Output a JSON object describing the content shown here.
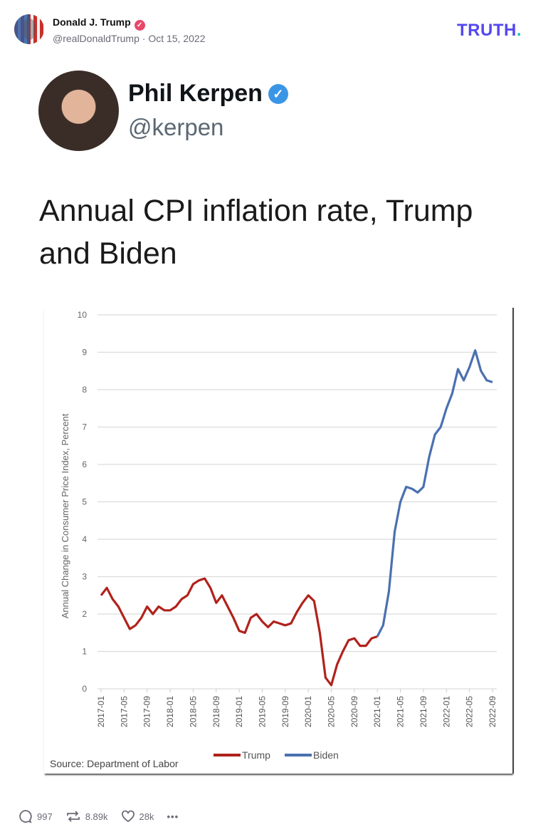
{
  "post": {
    "author_name": "Donald J. Trump",
    "handle": "@realDonaldTrump",
    "separator": "·",
    "date": "Oct 15, 2022",
    "verified_mark": "✓"
  },
  "brand": {
    "logo_text": "TRUTH",
    "logo_dot": ".",
    "color": "#5448ee",
    "dot_color": "#17c4a7"
  },
  "embedded_tweet": {
    "name": "Phil Kerpen",
    "handle": "@kerpen",
    "verified_mark": "✓",
    "text": "Annual CPI inflation rate, Trump and Biden"
  },
  "chart_data": {
    "type": "line",
    "title": "",
    "ylabel": "Annual Change in Consumer Price Index, Percent",
    "xlabel": "",
    "ylim": [
      0,
      10
    ],
    "yticks": [
      "0",
      "1",
      "2",
      "3",
      "4",
      "5",
      "6",
      "7",
      "8",
      "9",
      "10"
    ],
    "xticks": [
      "2017-01",
      "2017-05",
      "2017-09",
      "2018-01",
      "2018-05",
      "2018-09",
      "2019-01",
      "2019-05",
      "2019-09",
      "2020-01",
      "2020-05",
      "2020-09",
      "2021-01",
      "2021-05",
      "2021-09",
      "2022-01",
      "2022-05",
      "2022-09"
    ],
    "grid": true,
    "legend_position": "bottom",
    "source": "Source: Department of Labor",
    "series": [
      {
        "name": "Trump",
        "color": "#b0221c",
        "start": "2017-01",
        "values": [
          2.5,
          2.7,
          2.4,
          2.2,
          1.9,
          1.6,
          1.7,
          1.9,
          2.2,
          2.0,
          2.2,
          2.1,
          2.1,
          2.2,
          2.4,
          2.5,
          2.8,
          2.9,
          2.95,
          2.7,
          2.3,
          2.5,
          2.2,
          1.9,
          1.55,
          1.5,
          1.9,
          2.0,
          1.8,
          1.65,
          1.8,
          1.75,
          1.7,
          1.75,
          2.05,
          2.3,
          2.5,
          2.35,
          1.5,
          0.3,
          0.1,
          0.65,
          1.0,
          1.3,
          1.35,
          1.15,
          1.15,
          1.35,
          1.4
        ]
      },
      {
        "name": "Biden",
        "color": "#4a70b0",
        "start": "2021-01",
        "values": [
          1.4,
          1.7,
          2.6,
          4.2,
          5.0,
          5.4,
          5.35,
          5.25,
          5.4,
          6.2,
          6.8,
          7.0,
          7.5,
          7.9,
          8.55,
          8.25,
          8.6,
          9.05,
          8.5,
          8.25,
          8.2
        ]
      }
    ]
  },
  "actions": {
    "replies": "997",
    "retruths": "8.89k",
    "likes": "28k",
    "more": "•••"
  }
}
